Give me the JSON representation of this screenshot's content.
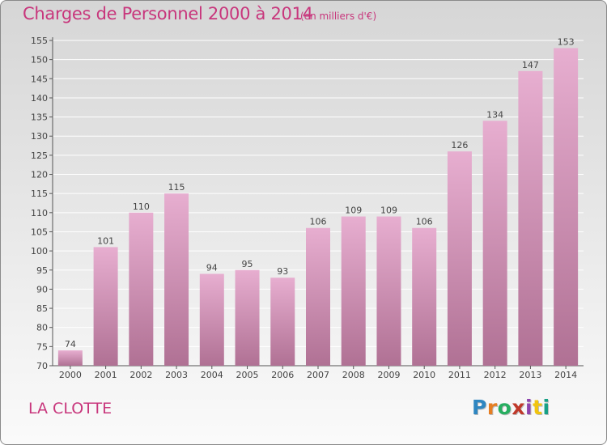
{
  "header": {
    "title": "Charges de Personnel 2000 à 2014",
    "unit": "(en milliers d'€)"
  },
  "footer": {
    "commune": "LA CLOTTE",
    "logo": [
      "P",
      "r",
      "o",
      "x",
      "i",
      "t",
      "i"
    ],
    "logo_colors": [
      "#2e86c1",
      "#e67e22",
      "#27ae60",
      "#c0392b",
      "#8e44ad",
      "#f1c40f",
      "#16a085"
    ]
  },
  "colors": {
    "bar_light": "#e7aed0",
    "bar_dark": "#b07194",
    "accent": "#c8367c"
  },
  "chart_data": {
    "type": "bar",
    "categories": [
      "2000",
      "2001",
      "2002",
      "2003",
      "2004",
      "2005",
      "2006",
      "2007",
      "2008",
      "2009",
      "2010",
      "2011",
      "2012",
      "2013",
      "2014"
    ],
    "values": [
      74,
      101,
      110,
      115,
      94,
      95,
      93,
      106,
      109,
      109,
      106,
      126,
      134,
      147,
      153
    ],
    "ylim": [
      70,
      155
    ],
    "yticks": [
      70,
      75,
      80,
      85,
      90,
      95,
      100,
      105,
      110,
      115,
      120,
      125,
      130,
      135,
      140,
      145,
      150,
      155
    ],
    "grid": true
  }
}
